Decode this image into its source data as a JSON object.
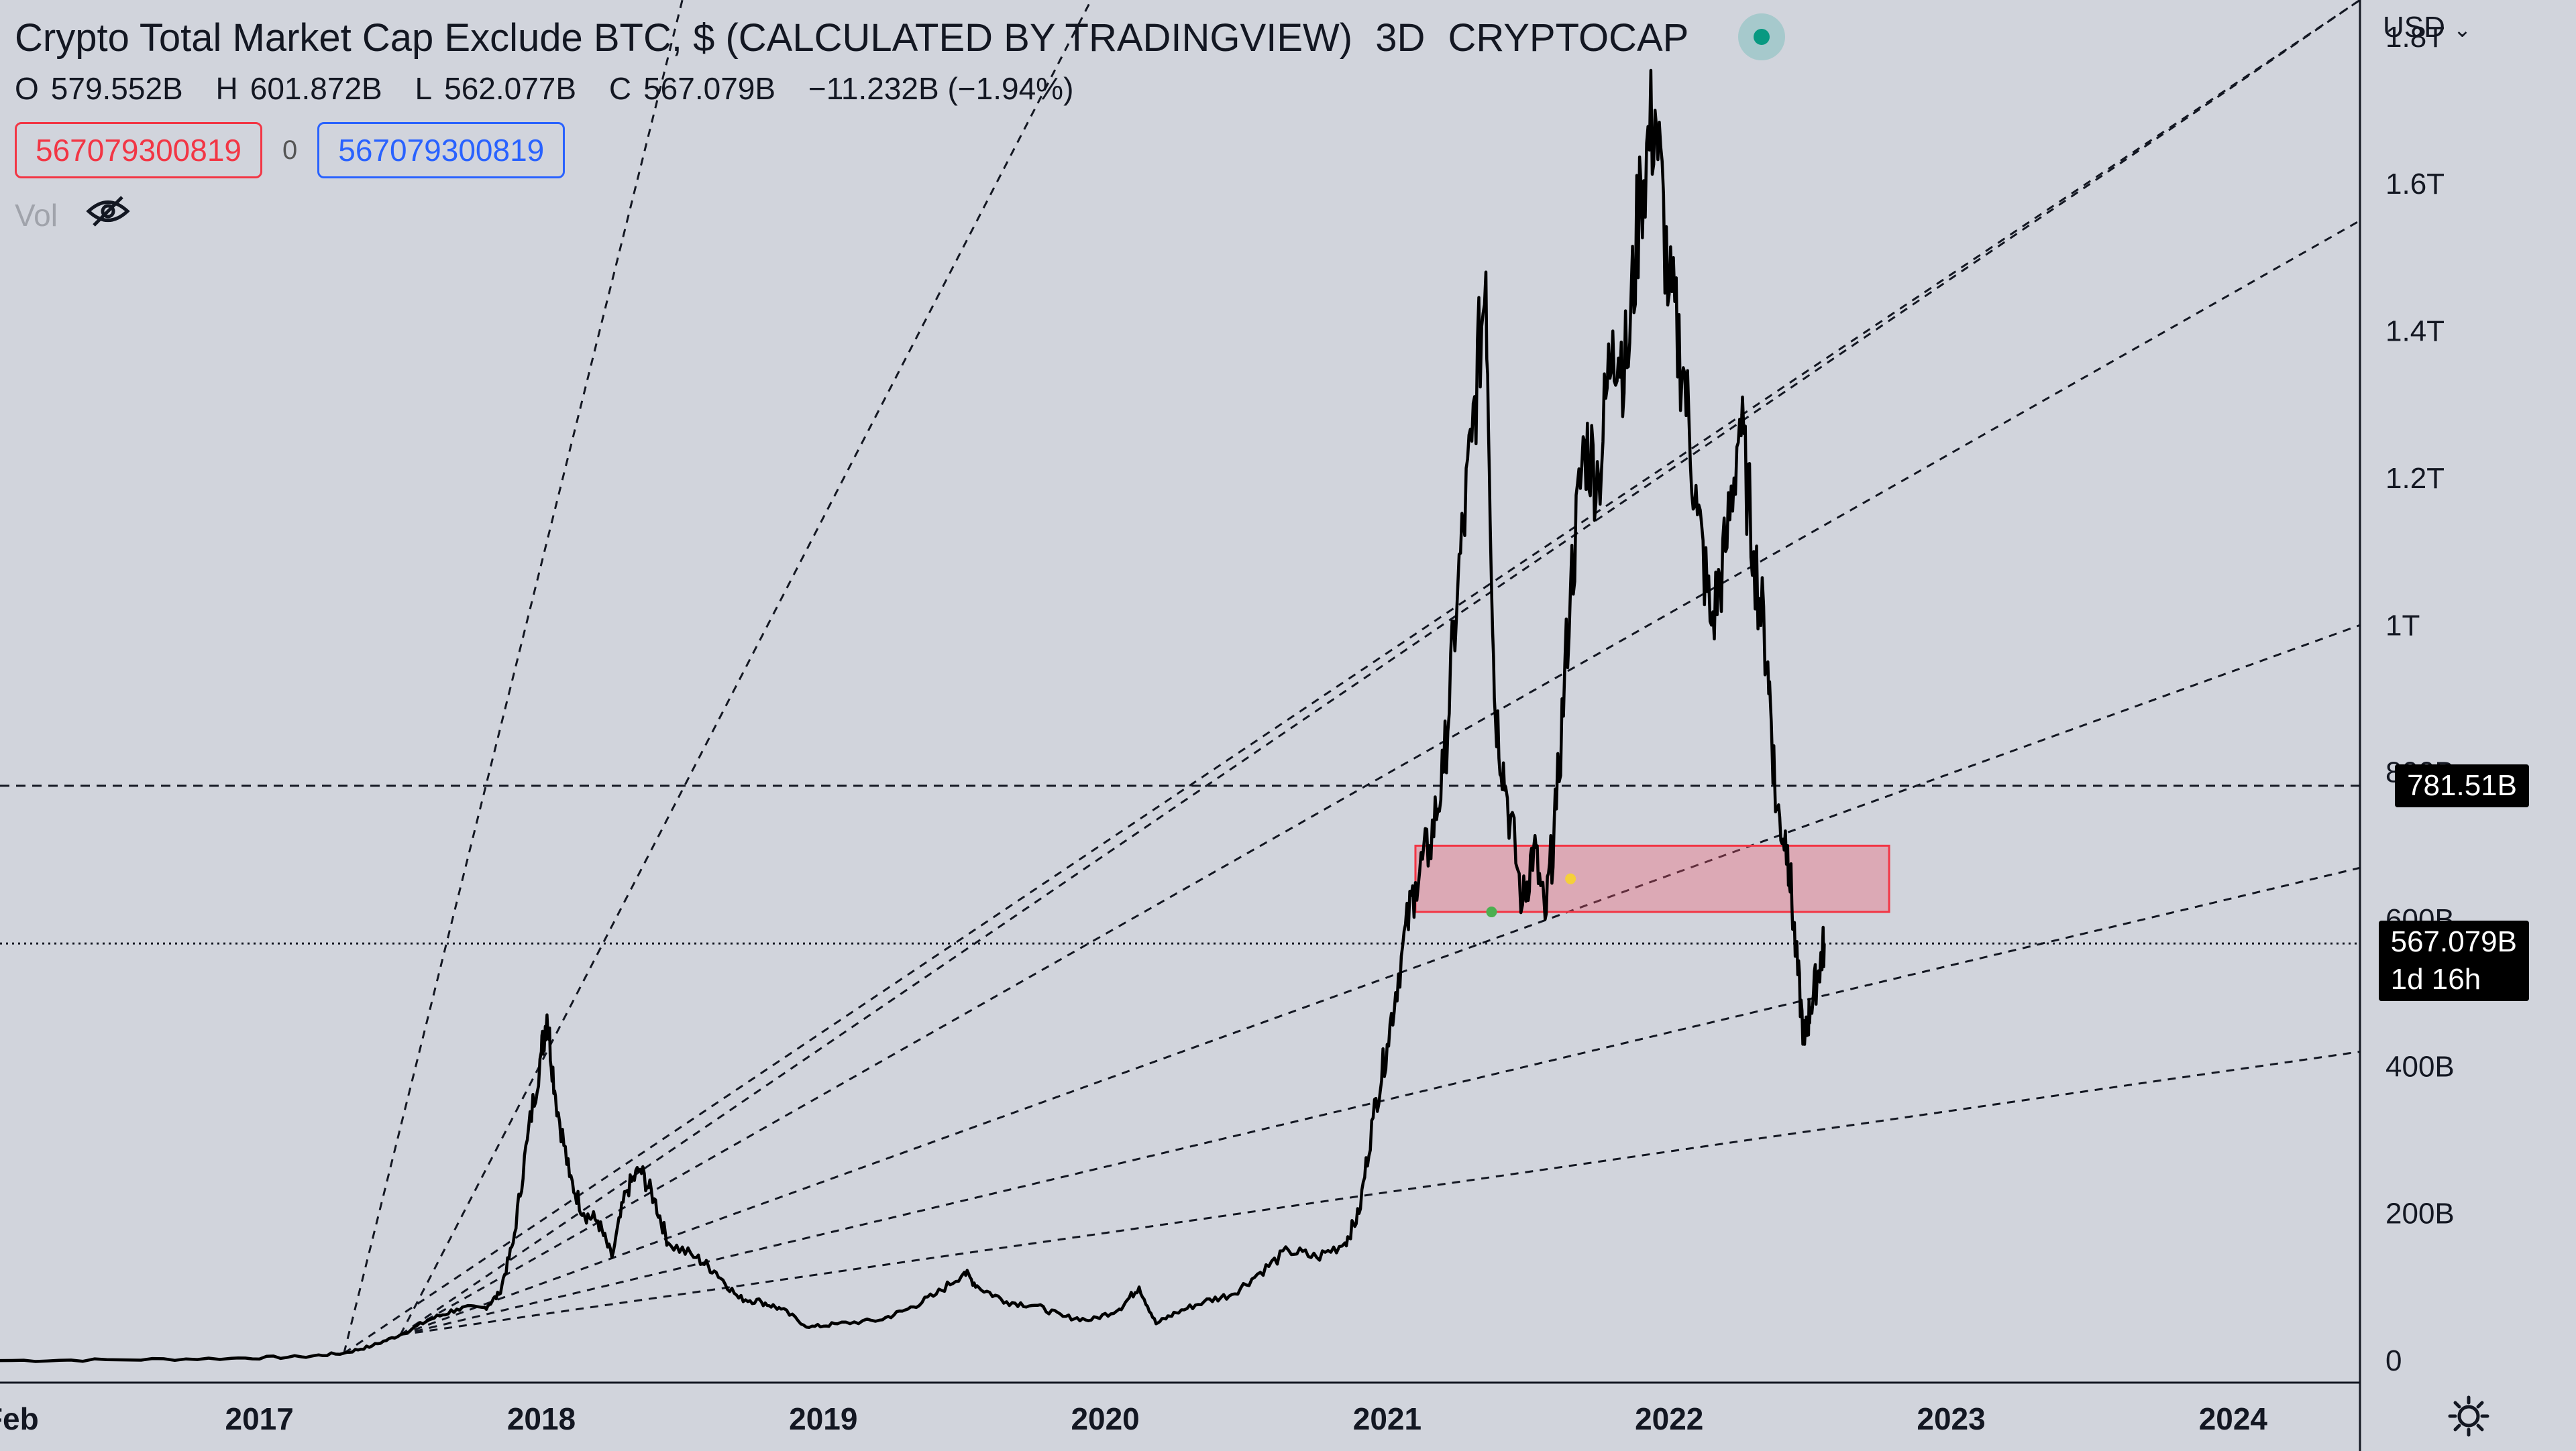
{
  "header": {
    "symbol_title": "Crypto Total Market Cap Exclude BTC, $ (CALCULATED BY TRADINGVIEW)",
    "interval": "3D",
    "exchange": "CRYPTOCAP",
    "ohlc": {
      "open_label": "O",
      "open": "579.552B",
      "high_label": "H",
      "high": "601.872B",
      "low_label": "L",
      "low": "562.077B",
      "close_label": "C",
      "close": "567.079B",
      "change": "−11.232B (−1.94%)"
    },
    "sell_value": "567079300819",
    "spread": "0",
    "buy_value": "567079300819",
    "volume_label": "Vol"
  },
  "axis": {
    "currency": "USD"
  },
  "labels": {
    "hline_price": "781.51B",
    "current_price": "567.079B",
    "countdown": "1d 16h"
  },
  "colors": {
    "background": "#d1d4dc",
    "price_line": "#000000",
    "zone_fill": "rgba(240,90,110,0.35)",
    "zone_border": "#f23645",
    "buy_blue": "#2962ff",
    "sell_red": "#f23645",
    "status_green": "#089981"
  },
  "chart_data": {
    "type": "line",
    "title": "Crypto Total Market Cap Exclude BTC, $ (CALCULATED BY TRADINGVIEW)",
    "y_scale": "linear",
    "ylim": [
      -30,
      1850
    ],
    "xlim": [
      2016.08,
      2024.45
    ],
    "y_ticks": [
      {
        "value": 0,
        "label": "0"
      },
      {
        "value": 200,
        "label": "200B"
      },
      {
        "value": 400,
        "label": "400B"
      },
      {
        "value": 600,
        "label": "600B"
      },
      {
        "value": 800,
        "label": "800B"
      },
      {
        "value": 1000,
        "label": "1T"
      },
      {
        "value": 1200,
        "label": "1.2T"
      },
      {
        "value": 1400,
        "label": "1.4T"
      },
      {
        "value": 1600,
        "label": "1.6T"
      },
      {
        "value": 1800,
        "label": "1.8T"
      }
    ],
    "x_ticks": [
      {
        "value": 2016.12,
        "label": "Feb"
      },
      {
        "value": 2017.0,
        "label": "2017"
      },
      {
        "value": 2018.0,
        "label": "2018"
      },
      {
        "value": 2019.0,
        "label": "2019"
      },
      {
        "value": 2020.0,
        "label": "2020"
      },
      {
        "value": 2021.0,
        "label": "2021"
      },
      {
        "value": 2022.0,
        "label": "2022"
      },
      {
        "value": 2023.0,
        "label": "2023"
      },
      {
        "value": 2024.0,
        "label": "2024"
      }
    ],
    "series": [
      {
        "points": [
          [
            2016.08,
            0
          ],
          [
            2016.5,
            1
          ],
          [
            2016.9,
            3
          ],
          [
            2017.15,
            5
          ],
          [
            2017.3,
            10
          ],
          [
            2017.4,
            20
          ],
          [
            2017.5,
            35
          ],
          [
            2017.6,
            55
          ],
          [
            2017.7,
            70
          ],
          [
            2017.8,
            72
          ],
          [
            2017.85,
            90
          ],
          [
            2017.9,
            160
          ],
          [
            2017.95,
            300
          ],
          [
            2018.0,
            420
          ],
          [
            2018.02,
            470
          ],
          [
            2018.05,
            360
          ],
          [
            2018.1,
            250
          ],
          [
            2018.15,
            200
          ],
          [
            2018.2,
            190
          ],
          [
            2018.25,
            140
          ],
          [
            2018.3,
            230
          ],
          [
            2018.35,
            260
          ],
          [
            2018.4,
            220
          ],
          [
            2018.45,
            160
          ],
          [
            2018.55,
            140
          ],
          [
            2018.62,
            120
          ],
          [
            2018.7,
            85
          ],
          [
            2018.78,
            80
          ],
          [
            2018.85,
            70
          ],
          [
            2018.95,
            45
          ],
          [
            2019.05,
            50
          ],
          [
            2019.2,
            55
          ],
          [
            2019.3,
            70
          ],
          [
            2019.4,
            90
          ],
          [
            2019.5,
            120
          ],
          [
            2019.55,
            100
          ],
          [
            2019.65,
            80
          ],
          [
            2019.75,
            75
          ],
          [
            2019.85,
            60
          ],
          [
            2019.95,
            55
          ],
          [
            2020.05,
            70
          ],
          [
            2020.12,
            100
          ],
          [
            2020.18,
            50
          ],
          [
            2020.25,
            65
          ],
          [
            2020.35,
            80
          ],
          [
            2020.45,
            90
          ],
          [
            2020.55,
            120
          ],
          [
            2020.65,
            150
          ],
          [
            2020.75,
            140
          ],
          [
            2020.85,
            160
          ],
          [
            2020.9,
            200
          ],
          [
            2020.95,
            330
          ],
          [
            2021.0,
            430
          ],
          [
            2021.05,
            550
          ],
          [
            2021.1,
            650
          ],
          [
            2021.15,
            700
          ],
          [
            2021.2,
            800
          ],
          [
            2021.25,
            1050
          ],
          [
            2021.3,
            1250
          ],
          [
            2021.35,
            1480
          ],
          [
            2021.38,
            900
          ],
          [
            2021.42,
            780
          ],
          [
            2021.48,
            620
          ],
          [
            2021.52,
            700
          ],
          [
            2021.56,
            600
          ],
          [
            2021.6,
            750
          ],
          [
            2021.65,
            1050
          ],
          [
            2021.7,
            1250
          ],
          [
            2021.75,
            1200
          ],
          [
            2021.8,
            1400
          ],
          [
            2021.85,
            1350
          ],
          [
            2021.9,
            1600
          ],
          [
            2021.95,
            1700
          ],
          [
            2022.0,
            1450
          ],
          [
            2022.05,
            1350
          ],
          [
            2022.1,
            1150
          ],
          [
            2022.15,
            1000
          ],
          [
            2022.2,
            1100
          ],
          [
            2022.25,
            1280
          ],
          [
            2022.3,
            1100
          ],
          [
            2022.35,
            950
          ],
          [
            2022.38,
            750
          ],
          [
            2022.42,
            700
          ],
          [
            2022.45,
            550
          ],
          [
            2022.48,
            430
          ],
          [
            2022.5,
            480
          ],
          [
            2022.53,
            530
          ],
          [
            2022.55,
            567
          ]
        ]
      }
    ],
    "reference_lines": [
      {
        "type": "horizontal",
        "value": 781.51,
        "style": "dashed",
        "label": "781.51B"
      },
      {
        "type": "horizontal",
        "value": 567.079,
        "style": "dotted",
        "label": "567.079B"
      }
    ],
    "zone": {
      "x0": 2021.1,
      "x1": 2022.78,
      "y0": 610,
      "y1": 700
    },
    "fan_lines": {
      "origin": [
        2017.5,
        35
      ],
      "end_points": [
        [
          2019.95,
          1850
        ],
        [
          2024.45,
          1850
        ],
        [
          2024.45,
          1550
        ],
        [
          2024.45,
          1000
        ],
        [
          2024.45,
          670
        ],
        [
          2024.45,
          420
        ]
      ]
    },
    "fan_lines_2": {
      "origin": [
        2017.3,
        10
      ],
      "end_points": [
        [
          2018.5,
          1850
        ],
        [
          2024.45,
          1850
        ]
      ]
    },
    "markers": [
      {
        "x": 2021.37,
        "y": 610,
        "color": "#4caf50"
      },
      {
        "x": 2021.65,
        "y": 655,
        "color": "#f5d03a"
      }
    ]
  }
}
